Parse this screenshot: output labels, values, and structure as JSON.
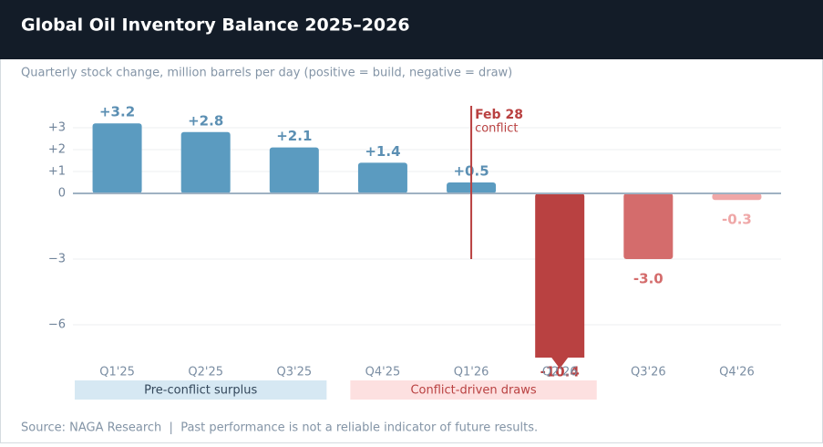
{
  "chart_data": {
    "type": "bar",
    "title": "Global Oil Inventory Balance 2025–2026",
    "subtitle": "Quarterly stock change, million barrels per day (positive = build, negative = draw)",
    "categories": [
      "Q1'25",
      "Q2'25",
      "Q3'25",
      "Q4'25",
      "Q1'26",
      "Q2'26",
      "Q3'26",
      "Q4'26"
    ],
    "values": [
      3.2,
      2.8,
      2.1,
      1.4,
      0.5,
      -10.4,
      -3.0,
      -0.3
    ],
    "value_labels": [
      "+3.2",
      "+2.8",
      "+2.1",
      "+1.4",
      "+0.5",
      "-10.4",
      "-3.0",
      "-0.3"
    ],
    "colors": [
      "#5b9bc0",
      "#5b9bc0",
      "#5b9bc0",
      "#5b9bc0",
      "#5b9bc0",
      "#b94141",
      "#d46c6c",
      "#efa7a7"
    ],
    "ylim": [
      -7.5,
      4
    ],
    "yticks": [
      {
        "value": -6,
        "label": "−6"
      },
      {
        "value": -3,
        "label": "−3"
      },
      0,
      {
        "value": 1,
        "label": "+1"
      },
      {
        "value": 2,
        "label": "+2"
      },
      {
        "value": 3,
        "label": "+3"
      }
    ],
    "grid": true,
    "annotation": {
      "title": "Feb 28",
      "text": "conflict"
    },
    "groups": [
      "Pre-conflict surplus",
      "Conflict-driven draws"
    ],
    "source": "Source: NAGA Research  |  Past performance is not a reliable indicator of future results."
  }
}
